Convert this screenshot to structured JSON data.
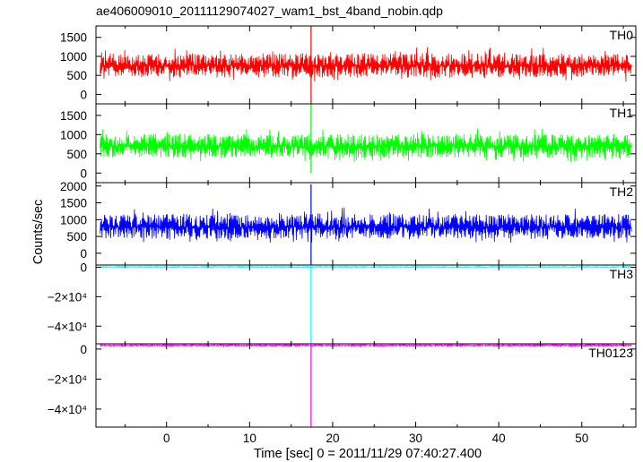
{
  "chart_data": {
    "type": "line",
    "title": "ae406009010_20111129074027_wam1_bst_4band_nobin.qdp",
    "xlabel": "Time [sec] 0 = 2011/11/29 07:40:27.400",
    "ylabel": "Counts/sec",
    "xlim": [
      -8.5,
      56.5
    ],
    "xticks": [
      0,
      10,
      20,
      30,
      40,
      50
    ],
    "grid": false,
    "burst_time": 17.4,
    "panels": [
      {
        "name": "TH0",
        "color": "#ff0000",
        "ylim": [
          -250,
          1800
        ],
        "yticks": [
          0,
          500,
          1000,
          1500
        ],
        "ytick_labels": [
          "0",
          "500",
          "1000",
          "1500"
        ],
        "x_range": [
          -8,
          56
        ],
        "mean": 760,
        "noise_low": 440,
        "noise_high": 1080,
        "spike_up": 1800,
        "spike_down": -250
      },
      {
        "name": "TH1",
        "color": "#00ff00",
        "ylim": [
          -250,
          1800
        ],
        "yticks": [
          0,
          500,
          1000,
          1500
        ],
        "ytick_labels": [
          "0",
          "500",
          "1000",
          "1500"
        ],
        "x_range": [
          -8,
          56
        ],
        "mean": 700,
        "noise_low": 390,
        "noise_high": 1020,
        "spike_up": 1800,
        "spike_down": 0
      },
      {
        "name": "TH2",
        "color": "#0000ff",
        "ylim": [
          -350,
          2100
        ],
        "yticks": [
          0,
          500,
          1000,
          1500,
          2000
        ],
        "ytick_labels": [
          "0",
          "500",
          "1000",
          "1500",
          "2000"
        ],
        "x_range": [
          -8,
          56
        ],
        "mean": 780,
        "noise_low": 430,
        "noise_high": 1170,
        "spike_up": 2050,
        "spike_down": -350
      },
      {
        "name": "TH3",
        "color": "#00ffff",
        "ylim": [
          -52000,
          1500
        ],
        "yticks": [
          0,
          -20000,
          -40000
        ],
        "ytick_labels": [
          "0",
          "−2×10⁴",
          "−4×10⁴"
        ],
        "x_range": [
          -8,
          56
        ],
        "mean": 150,
        "noise_low": -300,
        "noise_high": 600,
        "spike_up": 500,
        "spike_down": -52000
      },
      {
        "name": "TH0123",
        "color": "#ff00ff",
        "ylim": [
          -52000,
          3500
        ],
        "yticks": [
          0,
          -20000,
          -40000
        ],
        "ytick_labels": [
          "0",
          "−2×10⁴",
          "−4×10⁴"
        ],
        "x_range": [
          -8,
          56
        ],
        "mean": 2400,
        "noise_low": 1800,
        "noise_high": 3100,
        "spike_up": 3100,
        "spike_down": -52000
      }
    ]
  }
}
